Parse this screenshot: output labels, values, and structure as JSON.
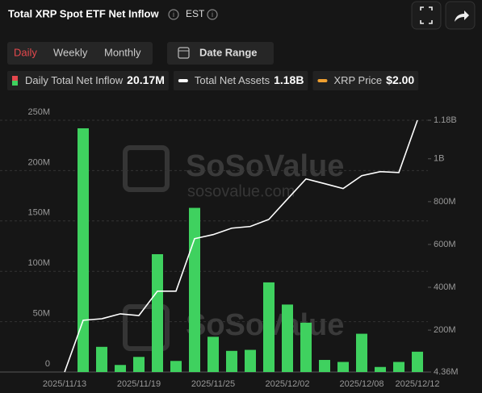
{
  "header": {
    "title": "Total XRP Spot ETF Net Inflow",
    "timezone": "EST"
  },
  "tabs": [
    "Daily",
    "Weekly",
    "Monthly"
  ],
  "date_range": "Date Range",
  "watermark": {
    "brand": "SoSoValue",
    "url": "sosovalue.com"
  },
  "chart_data": {
    "type": "bar",
    "categories": [
      "2025/11/13",
      null,
      null,
      null,
      "2025/11/19",
      null,
      null,
      null,
      "2025/11/25",
      null,
      null,
      null,
      "2025/12/02",
      null,
      null,
      null,
      "2025/12/08",
      null,
      null,
      "2025/12/12"
    ],
    "series": [
      {
        "name": "Daily Total Net Inflow",
        "color": "#3fd15f",
        "latest": "20.17M",
        "values": [
          0,
          242,
          25,
          7,
          15,
          117,
          11,
          163,
          35,
          21,
          22,
          89,
          67,
          49,
          12,
          10,
          38,
          5,
          10,
          20.17
        ]
      },
      {
        "name": "Total Net Assets",
        "type": "line",
        "axis": "y2",
        "color": "#ffffff",
        "latest": "1.18B",
        "values": [
          4.36,
          246,
          253,
          276,
          268,
          382,
          382,
          627,
          646,
          676,
          684,
          717,
          812,
          906,
          884,
          861,
          921,
          940,
          936,
          1180
        ]
      }
    ],
    "price_legend": {
      "name": "XRP Price",
      "color": "#f0a030",
      "latest": "$2.00"
    },
    "ylim": [
      0,
      250
    ],
    "yticks": [
      0,
      {
        "value": 50,
        "label": "50M"
      },
      {
        "value": 100,
        "label": "100M"
      },
      {
        "value": 150,
        "label": "150M"
      },
      {
        "value": 200,
        "label": "200M"
      },
      {
        "value": 250,
        "label": "250M"
      }
    ],
    "y2lim": [
      4.36,
      1180
    ],
    "y2ticks": [
      {
        "value": 4.36,
        "label": "4.36M"
      },
      {
        "value": 200,
        "label": "200M"
      },
      {
        "value": 400,
        "label": "400M"
      },
      {
        "value": 600,
        "label": "600M"
      },
      {
        "value": 800,
        "label": "800M"
      },
      {
        "value": 1000,
        "label": "1B"
      },
      {
        "value": 1180,
        "label": "1.18B"
      }
    ],
    "grid": true
  }
}
